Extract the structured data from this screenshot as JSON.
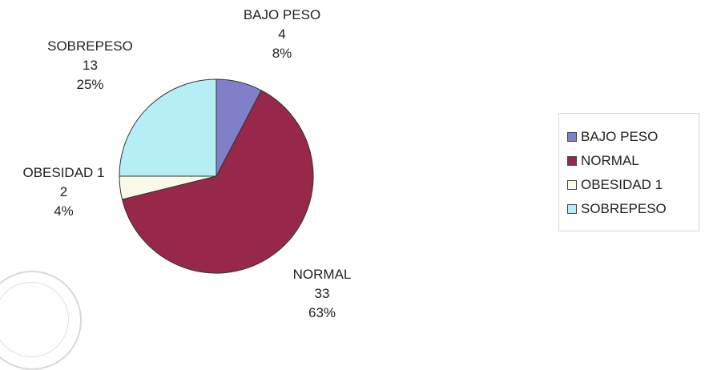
{
  "chart_data": {
    "type": "pie",
    "title": "",
    "slices": [
      {
        "label": "BAJO PESO",
        "count": "4",
        "percent": "8%",
        "value": 4,
        "color": "#8080c8"
      },
      {
        "label": "NORMAL",
        "count": "33",
        "percent": "63%",
        "value": 33,
        "color": "#98284a"
      },
      {
        "label": "OBESIDAD 1",
        "count": "2",
        "percent": "4%",
        "value": 2,
        "color": "#fbf9e8"
      },
      {
        "label": "SOBREPESO",
        "count": "13",
        "percent": "25%",
        "value": 13,
        "color": "#b6eef6"
      }
    ],
    "legend": {
      "position": "right",
      "entries": [
        "BAJO PESO",
        "NORMAL",
        "OBESIDAD 1",
        "SOBREPESO"
      ]
    }
  }
}
